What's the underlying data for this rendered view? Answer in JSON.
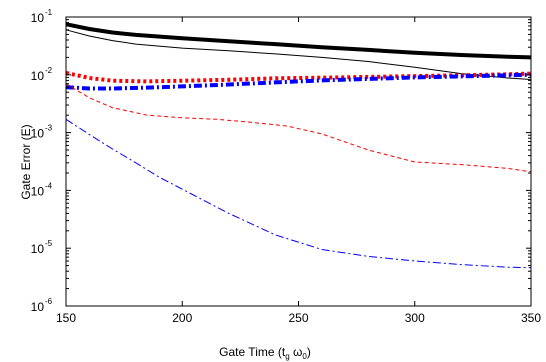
{
  "chart_data": {
    "type": "line",
    "title": "",
    "xlabel": {
      "main": "Gate Time (t",
      "sub1": "g",
      "mid": " ω",
      "sub2": "0",
      "end": ")"
    },
    "ylabel": "Gate Error (E)",
    "xlim": [
      150,
      350
    ],
    "ylim": [
      1e-06,
      0.1
    ],
    "yscale": "log",
    "grid": false,
    "x_ticks": [
      "150",
      "200",
      "250",
      "300",
      "350"
    ],
    "y_ticks": [
      {
        "base": "10",
        "exp": "-6"
      },
      {
        "base": "10",
        "exp": "-5"
      },
      {
        "base": "10",
        "exp": "-4"
      },
      {
        "base": "10",
        "exp": "-3"
      },
      {
        "base": "10",
        "exp": "-2"
      },
      {
        "base": "10",
        "exp": "-1"
      }
    ],
    "series": [
      {
        "color": "#000000",
        "width": 4,
        "dash": "",
        "points": [
          [
            150,
            0.075
          ],
          [
            160,
            0.062
          ],
          [
            170,
            0.054
          ],
          [
            180,
            0.049
          ],
          [
            200,
            0.043
          ],
          [
            220,
            0.038
          ],
          [
            240,
            0.034
          ],
          [
            260,
            0.03
          ],
          [
            280,
            0.027
          ],
          [
            300,
            0.024
          ],
          [
            320,
            0.022
          ],
          [
            340,
            0.0205
          ],
          [
            350,
            0.02
          ]
        ]
      },
      {
        "color": "#000000",
        "width": 1,
        "dash": "",
        "points": [
          [
            150,
            0.06
          ],
          [
            160,
            0.047
          ],
          [
            170,
            0.039
          ],
          [
            180,
            0.034
          ],
          [
            200,
            0.029
          ],
          [
            220,
            0.026
          ],
          [
            240,
            0.023
          ],
          [
            260,
            0.02
          ],
          [
            280,
            0.017
          ],
          [
            300,
            0.0135
          ],
          [
            320,
            0.0105
          ],
          [
            340,
            0.0088
          ],
          [
            350,
            0.0083
          ]
        ]
      },
      {
        "color": "#ff0000",
        "width": 4,
        "dash": "3,3",
        "points": [
          [
            150,
            0.0108
          ],
          [
            160,
            0.0088
          ],
          [
            170,
            0.0079
          ],
          [
            185,
            0.0077
          ],
          [
            200,
            0.0079
          ],
          [
            220,
            0.0082
          ],
          [
            240,
            0.0087
          ],
          [
            260,
            0.0089
          ],
          [
            280,
            0.0092
          ],
          [
            300,
            0.0095
          ],
          [
            320,
            0.0098
          ],
          [
            340,
            0.0102
          ],
          [
            350,
            0.0105
          ]
        ]
      },
      {
        "color": "#0000ff",
        "width": 4,
        "dash": "8,3,2,3",
        "points": [
          [
            150,
            0.0061
          ],
          [
            160,
            0.0058
          ],
          [
            170,
            0.0058
          ],
          [
            185,
            0.006
          ],
          [
            200,
            0.0063
          ],
          [
            220,
            0.0068
          ],
          [
            240,
            0.0074
          ],
          [
            260,
            0.008
          ],
          [
            280,
            0.0085
          ],
          [
            300,
            0.009
          ],
          [
            320,
            0.0094
          ],
          [
            340,
            0.0098
          ],
          [
            350,
            0.01
          ]
        ]
      },
      {
        "color": "#ff0000",
        "width": 1,
        "dash": "4,3",
        "points": [
          [
            150,
            0.007
          ],
          [
            160,
            0.004
          ],
          [
            170,
            0.0027
          ],
          [
            185,
            0.002
          ],
          [
            200,
            0.0018
          ],
          [
            215,
            0.0017
          ],
          [
            230,
            0.0015
          ],
          [
            245,
            0.0013
          ],
          [
            260,
            0.00095
          ],
          [
            280,
            0.0005
          ],
          [
            300,
            0.00031
          ],
          [
            320,
            0.00028
          ],
          [
            340,
            0.00024
          ],
          [
            350,
            0.00021
          ]
        ]
      },
      {
        "color": "#0000ff",
        "width": 1,
        "dash": "8,3,2,3",
        "points": [
          [
            150,
            0.0017
          ],
          [
            160,
            0.00093
          ],
          [
            170,
            0.00052
          ],
          [
            180,
            0.0003
          ],
          [
            190,
            0.00017
          ],
          [
            200,
            0.000105
          ],
          [
            220,
            4e-05
          ],
          [
            240,
            1.7e-05
          ],
          [
            260,
            9.5e-06
          ],
          [
            280,
            7.2e-06
          ],
          [
            300,
            6e-06
          ],
          [
            320,
            5.2e-06
          ],
          [
            340,
            4.7e-06
          ],
          [
            350,
            4.6e-06
          ]
        ]
      }
    ]
  }
}
